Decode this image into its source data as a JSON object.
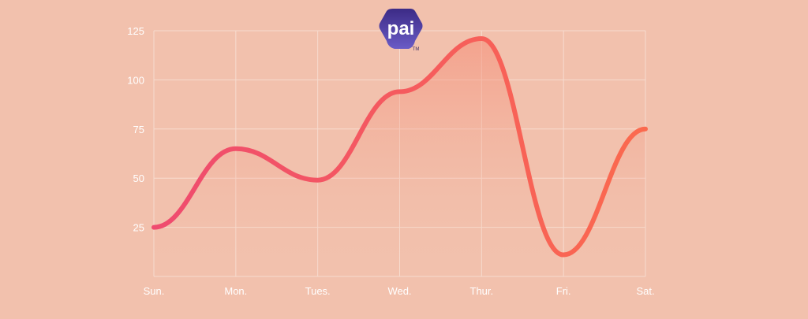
{
  "logo": {
    "text": "pai",
    "trademark": "TM"
  },
  "colors": {
    "background": "#f2c1ad",
    "line_start": "#ef4b6f",
    "line_end": "#fb6a4e",
    "grid": "#f7dccf",
    "logo_dark": "#3c2b86",
    "logo_light": "#6a5bc6"
  },
  "chart_data": {
    "type": "area",
    "categories": [
      "Sun.",
      "Mon.",
      "Tues.",
      "Wed.",
      "Thur.",
      "Fri.",
      "Sat."
    ],
    "series": [
      {
        "values": [
          25,
          65,
          49,
          94,
          121,
          11,
          75
        ]
      }
    ],
    "y_ticks": [
      25,
      50,
      75,
      100,
      125
    ],
    "ylim": [
      0,
      125
    ],
    "grid": true,
    "smooth": true
  }
}
